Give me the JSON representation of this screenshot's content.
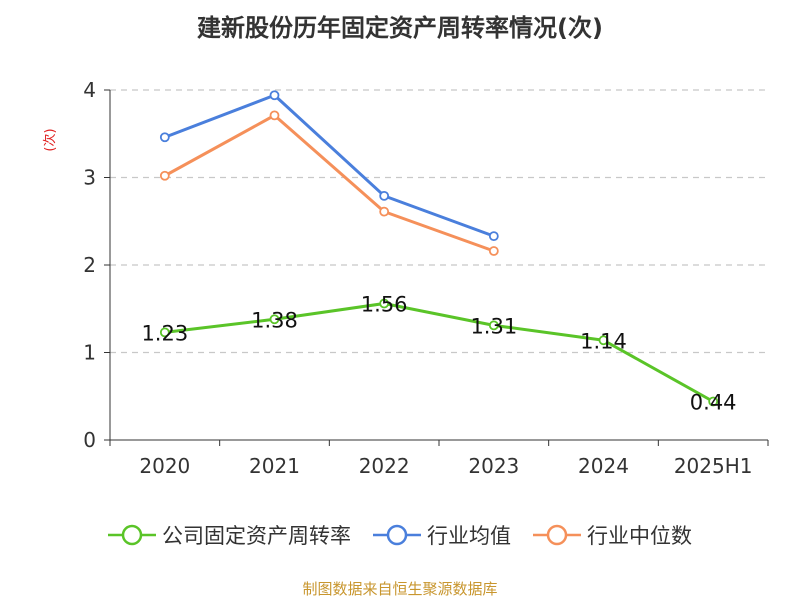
{
  "chart_data": {
    "type": "line",
    "title": "建新股份历年固定资产周转率情况(次)",
    "ylabel": "(次)",
    "xlabel": "",
    "categories": [
      "2020",
      "2021",
      "2022",
      "2023",
      "2024",
      "2025H1"
    ],
    "ylim": [
      0,
      4
    ],
    "yticks": [
      "0",
      "1",
      "2",
      "3",
      "4"
    ],
    "grid": true,
    "legend_position": "bottom",
    "series": [
      {
        "name": "公司固定资产周转率",
        "color": "#5ac428",
        "values": [
          1.23,
          1.38,
          1.56,
          1.31,
          1.14,
          0.44
        ],
        "labels": [
          "1.23",
          "1.38",
          "1.56",
          "1.31",
          "1.14",
          "0.44"
        ],
        "show_labels": true
      },
      {
        "name": "行业均值",
        "color": "#4a7fdc",
        "values": [
          3.46,
          3.94,
          2.79,
          2.33,
          null,
          null
        ],
        "show_labels": false
      },
      {
        "name": "行业中位数",
        "color": "#f5905a",
        "values": [
          3.02,
          3.71,
          2.61,
          2.16,
          null,
          null
        ],
        "show_labels": false
      }
    ]
  },
  "source": "制图数据来自恒生聚源数据库"
}
